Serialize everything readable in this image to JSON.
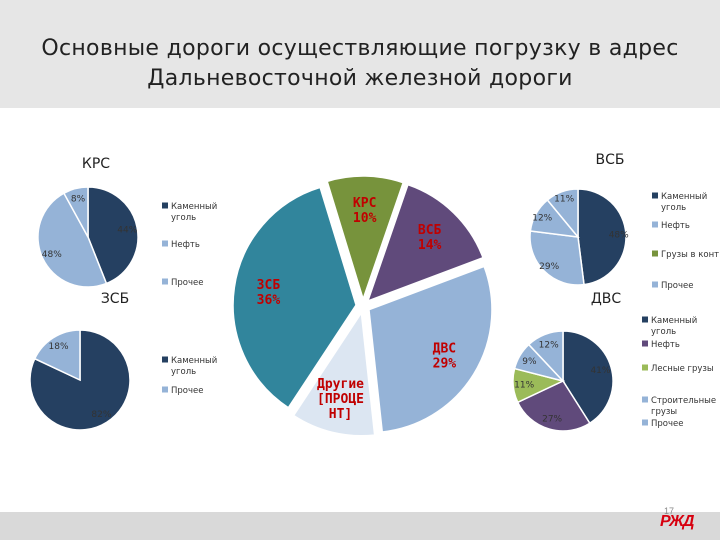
{
  "title": {
    "line1": "Основные дороги осуществляющие погрузку в адрес",
    "line2": "Дальневосточной железной дороги"
  },
  "page_number": "17",
  "logo_text": "РЖД",
  "chart_data": [
    {
      "id": "main",
      "type": "pie",
      "slices": [
        {
          "label": "КРС",
          "value": 10,
          "text": "КРС\n10%",
          "color": "#77933c"
        },
        {
          "label": "ВСБ",
          "value": 14,
          "text": "ВСБ\n14%",
          "color": "#604a7b"
        },
        {
          "label": "ДВС",
          "value": 29,
          "text": "ДВС\n29%",
          "color": "#95b3d7"
        },
        {
          "label": "Другие",
          "value": 11,
          "text": "Другие\n[ПРОЦЕ\nНТ]",
          "color": "#dce6f2"
        },
        {
          "label": "ЗСБ",
          "value": 36,
          "text": "ЗСБ\n36%",
          "color": "#31859c"
        }
      ]
    },
    {
      "id": "krs",
      "type": "pie",
      "title": "КРС",
      "slices": [
        {
          "label": "Каменный уголь",
          "value": 44,
          "text": "44%",
          "color": "#254061"
        },
        {
          "label": "Нефть",
          "value": 48,
          "text": "48%",
          "color": "#95b3d7"
        },
        {
          "label": "Прочее",
          "value": 8,
          "text": "8%",
          "color": "#95b3d7"
        }
      ],
      "legend": [
        {
          "text": "Каменный\nуголь",
          "color": "#254061"
        },
        {
          "text": "Нефть",
          "color": "#95b3d7"
        },
        {
          "text": "Прочее",
          "color": "#95b3d7"
        }
      ]
    },
    {
      "id": "vsb",
      "type": "pie",
      "title": "ВСБ",
      "slices": [
        {
          "label": "Каменный уголь",
          "value": 48,
          "text": "48%",
          "color": "#254061"
        },
        {
          "label": "Грузы в конт.",
          "value": 29,
          "text": "29%",
          "color": "#95b3d7"
        },
        {
          "label": "Нефть",
          "value": 12,
          "text": "12%",
          "color": "#95b3d7"
        },
        {
          "label": "Прочее",
          "value": 11,
          "text": "11%",
          "color": "#95b3d7"
        }
      ],
      "legend": [
        {
          "text": "Каменный\nуголь",
          "color": "#254061"
        },
        {
          "text": "Нефть",
          "color": "#95b3d7"
        },
        {
          "text": "Грузы в конт.",
          "color": "#77933c"
        },
        {
          "text": "Прочее",
          "color": "#95b3d7"
        }
      ]
    },
    {
      "id": "zsb",
      "type": "pie",
      "title": "ЗСБ",
      "slices": [
        {
          "label": "Каменный уголь",
          "value": 82,
          "text": "82%",
          "color": "#254061"
        },
        {
          "label": "Прочее",
          "value": 18,
          "text": "18%",
          "color": "#95b3d7"
        }
      ],
      "legend": [
        {
          "text": "Каменный\nуголь",
          "color": "#254061"
        },
        {
          "text": "Прочее",
          "color": "#95b3d7"
        }
      ]
    },
    {
      "id": "dvs",
      "type": "pie",
      "title": "ДВС",
      "slices": [
        {
          "label": "Каменный уголь",
          "value": 41,
          "text": "41%",
          "color": "#254061"
        },
        {
          "label": "Нефть",
          "value": 27,
          "text": "27%",
          "color": "#604a7b"
        },
        {
          "label": "Лесные грузы",
          "value": 11,
          "text": "11%",
          "color": "#9bbb59"
        },
        {
          "label": "Строительные грузы",
          "value": 9,
          "text": "9%",
          "color": "#95b3d7"
        },
        {
          "label": "Прочее",
          "value": 12,
          "text": "12%",
          "color": "#95b3d7"
        }
      ],
      "legend": [
        {
          "text": "Каменный\nуголь",
          "color": "#254061"
        },
        {
          "text": "Нефть",
          "color": "#604a7b"
        },
        {
          "text": "Лесные грузы",
          "color": "#9bbb59"
        },
        {
          "text": "Строительные\nгрузы",
          "color": "#95b3d7"
        },
        {
          "text": "Прочее",
          "color": "#95b3d7"
        }
      ]
    }
  ]
}
